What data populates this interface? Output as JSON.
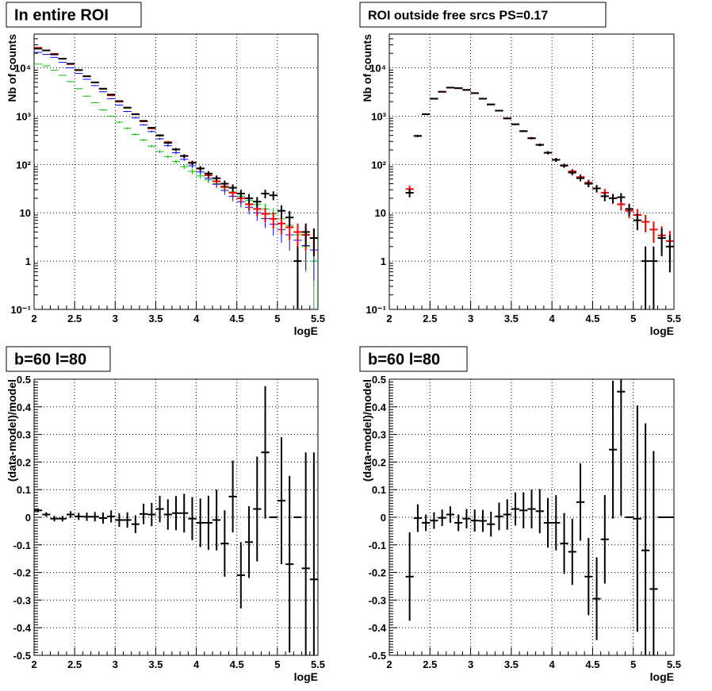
{
  "colors": {
    "data": "#000000",
    "total": "#ff0000",
    "model_a": "#0000ff",
    "model_b": "#00c000"
  },
  "chart_data": [
    {
      "type": "scatter",
      "title": "In entire ROI",
      "xlabel": "logE",
      "ylabel": "Nb of counts",
      "xlim": [
        2,
        5.5
      ],
      "ylim": [
        0.1,
        50000
      ],
      "log_y": true,
      "grid": true,
      "x": [
        2.05,
        2.15,
        2.25,
        2.35,
        2.45,
        2.55,
        2.65,
        2.75,
        2.85,
        2.95,
        3.05,
        3.15,
        3.25,
        3.35,
        3.45,
        3.55,
        3.65,
        3.75,
        3.85,
        3.95,
        4.05,
        4.15,
        4.25,
        4.35,
        4.45,
        4.55,
        4.65,
        4.75,
        4.85,
        4.95,
        5.05,
        5.15,
        5.25,
        5.35,
        5.45
      ],
      "series": [
        {
          "color": "black",
          "values": [
            25000,
            23000,
            19000,
            15500,
            12200,
            9000,
            6700,
            5000,
            3700,
            2800,
            2050,
            1500,
            1100,
            800,
            575,
            400,
            280,
            205,
            150,
            108,
            83,
            65,
            52,
            40,
            33,
            25,
            20,
            17,
            25,
            23,
            11,
            8,
            1,
            4,
            3
          ]
        },
        {
          "color": "red",
          "values": [
            26000,
            23000,
            19500,
            15500,
            12000,
            9000,
            6700,
            5000,
            3700,
            2700,
            2000,
            1500,
            1100,
            780,
            560,
            400,
            290,
            205,
            150,
            110,
            82,
            60,
            45,
            35,
            26,
            20,
            15,
            12,
            9.5,
            7.5,
            6,
            5,
            4,
            3.5,
            3
          ]
        },
        {
          "color": "blue",
          "values": [
            21000,
            19000,
            16500,
            13000,
            10000,
            7700,
            5800,
            4300,
            3200,
            2300,
            1700,
            1250,
            920,
            660,
            480,
            340,
            245,
            175,
            128,
            94,
            70,
            52,
            39,
            29,
            22,
            17,
            13,
            10,
            7.6,
            5.8,
            4.5,
            3.5,
            2.7,
            2.1,
            1.7
          ]
        },
        {
          "color": "green",
          "values": [
            12000,
            11000,
            9000,
            7000,
            5200,
            3700,
            2600,
            1900,
            1350,
            1000,
            750,
            560,
            420,
            320,
            240,
            185,
            145,
            115,
            90,
            72,
            58,
            48,
            40,
            33,
            27,
            22,
            18,
            15,
            12,
            9.5,
            7.5,
            5.5,
            3.5,
            2,
            1
          ]
        }
      ]
    },
    {
      "type": "scatter",
      "title": "ROI outside free srcs PS=0.17",
      "xlabel": "logE",
      "ylabel": "Nb of counts",
      "xlim": [
        2,
        5.5
      ],
      "ylim": [
        0.1,
        50000
      ],
      "log_y": true,
      "grid": true,
      "x": [
        2.25,
        2.35,
        2.45,
        2.55,
        2.65,
        2.75,
        2.85,
        2.95,
        3.05,
        3.15,
        3.25,
        3.35,
        3.45,
        3.55,
        3.65,
        3.75,
        3.85,
        3.95,
        4.05,
        4.15,
        4.25,
        4.35,
        4.45,
        4.55,
        4.65,
        4.75,
        4.85,
        4.95,
        5.05,
        5.15,
        5.25,
        5.35,
        5.45
      ],
      "series": [
        {
          "color": "black",
          "values": [
            26,
            390,
            1100,
            2300,
            3200,
            3900,
            3800,
            3500,
            3000,
            2300,
            1750,
            1300,
            900,
            680,
            490,
            350,
            255,
            175,
            125,
            95,
            68,
            52,
            40,
            32,
            22,
            20,
            21,
            12,
            7,
            1,
            1,
            3,
            2
          ]
        },
        {
          "color": "red",
          "values": [
            31,
            390,
            1100,
            2300,
            3200,
            3900,
            3800,
            3500,
            3000,
            2300,
            1750,
            1300,
            900,
            680,
            490,
            350,
            255,
            175,
            125,
            95,
            72,
            55,
            42,
            32,
            26,
            20,
            15,
            11,
            9,
            6.5,
            4.5,
            3.4,
            2.6
          ]
        }
      ]
    },
    {
      "type": "scatter",
      "title": "b=60 l=80",
      "xlabel": "logE",
      "ylabel": "(data-model)/model",
      "xlim": [
        2,
        5.5
      ],
      "ylim": [
        -0.5,
        0.5
      ],
      "grid": true,
      "x": [
        2.05,
        2.15,
        2.25,
        2.35,
        2.45,
        2.55,
        2.65,
        2.75,
        2.85,
        2.95,
        3.05,
        3.15,
        3.25,
        3.35,
        3.45,
        3.55,
        3.65,
        3.75,
        3.85,
        3.95,
        4.05,
        4.15,
        4.25,
        4.35,
        4.45,
        4.55,
        4.65,
        4.75,
        4.85,
        4.95,
        5.05,
        5.15,
        5.25,
        5.35,
        5.45
      ],
      "y": [
        0.025,
        0.01,
        -0.005,
        -0.005,
        0.01,
        0.003,
        0.002,
        0.002,
        -0.003,
        0.003,
        -0.01,
        -0.01,
        -0.025,
        0.012,
        0.01,
        0.03,
        0.01,
        0.015,
        0.015,
        -0.005,
        -0.02,
        -0.02,
        -0.01,
        -0.095,
        0.075,
        -0.21,
        -0.09,
        0.03,
        0.235,
        0.0,
        0.06,
        -0.17,
        0.0,
        -0.185,
        -0.225
      ],
      "yerr": [
        0.007,
        0.008,
        0.01,
        0.01,
        0.012,
        0.013,
        0.015,
        0.017,
        0.02,
        0.022,
        0.025,
        0.028,
        0.032,
        0.037,
        0.042,
        0.048,
        0.055,
        0.062,
        0.07,
        0.078,
        0.088,
        0.098,
        0.11,
        0.12,
        0.13,
        0.12,
        0.13,
        0.19,
        0.24,
        0,
        0.23,
        0.32,
        0,
        0.42,
        0.46
      ]
    },
    {
      "type": "scatter",
      "title": "b=60 l=80",
      "xlabel": "logE",
      "ylabel": "(data-model)/model",
      "xlim": [
        2,
        5.5
      ],
      "ylim": [
        -0.5,
        0.5
      ],
      "grid": true,
      "x": [
        2.25,
        2.35,
        2.45,
        2.55,
        2.65,
        2.75,
        2.85,
        2.95,
        3.05,
        3.15,
        3.25,
        3.35,
        3.45,
        3.55,
        3.65,
        3.75,
        3.85,
        3.95,
        4.05,
        4.15,
        4.25,
        4.35,
        4.45,
        4.55,
        4.65,
        4.75,
        4.85,
        4.95,
        5.05,
        5.15,
        5.25,
        5.35,
        5.45
      ],
      "y": [
        -0.215,
        -0.003,
        -0.02,
        -0.012,
        -0.002,
        0.01,
        -0.02,
        -0.005,
        -0.012,
        -0.013,
        -0.025,
        0.003,
        0.01,
        0.03,
        0.025,
        0.03,
        0.022,
        -0.02,
        -0.02,
        -0.095,
        -0.125,
        0.055,
        -0.215,
        -0.295,
        -0.08,
        0.245,
        0.455,
        0.0,
        -0.005,
        -0.12,
        -0.26,
        0,
        0
      ],
      "yerr": [
        0.16,
        0.05,
        0.03,
        0.03,
        0.03,
        0.03,
        0.03,
        0.035,
        0.04,
        0.04,
        0.045,
        0.05,
        0.055,
        0.06,
        0.065,
        0.07,
        0.08,
        0.09,
        0.1,
        0.11,
        0.12,
        0.14,
        0.14,
        0.15,
        0.16,
        0.25,
        0.45,
        0,
        0.41,
        0.46,
        0.5,
        0,
        0
      ]
    }
  ]
}
